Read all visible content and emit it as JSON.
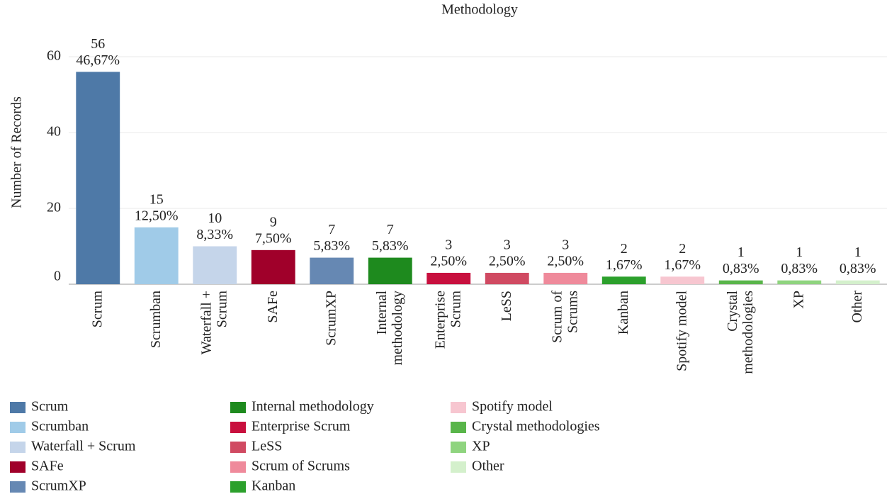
{
  "chart_data": {
    "type": "bar",
    "title": "Methodology",
    "y_label": "Number of Records",
    "categories": [
      "Scrum",
      "Scrumban",
      "Waterfall + Scrum",
      "SAFe",
      "ScrumXP",
      "Internal methodology",
      "Enterprise Scrum",
      "LeSS",
      "Scrum of Scrums",
      "Kanban",
      "Spotify model",
      "Crystal methodologies",
      "XP",
      "Other"
    ],
    "values": [
      56,
      15,
      10,
      9,
      7,
      7,
      3,
      3,
      3,
      2,
      2,
      1,
      1,
      1
    ],
    "percent_labels": [
      "46,67%",
      "12,50%",
      "8,33%",
      "7,50%",
      "5,83%",
      "5,83%",
      "2,50%",
      "2,50%",
      "2,50%",
      "1,67%",
      "1,67%",
      "0,83%",
      "0,83%",
      "0,83%"
    ],
    "colors": [
      "#4e79a7",
      "#a0cbe8",
      "#c5d5ea",
      "#a0002a",
      "#6688b3",
      "#1e8a1e",
      "#c8103e",
      "#d04a62",
      "#ef8a9b",
      "#2ca02c",
      "#f7c6d0",
      "#59b54a",
      "#8fd47f",
      "#d4f0cc"
    ],
    "ylim": [
      0,
      70
    ],
    "yticks": [
      0,
      20,
      40,
      60
    ],
    "grid": true
  }
}
